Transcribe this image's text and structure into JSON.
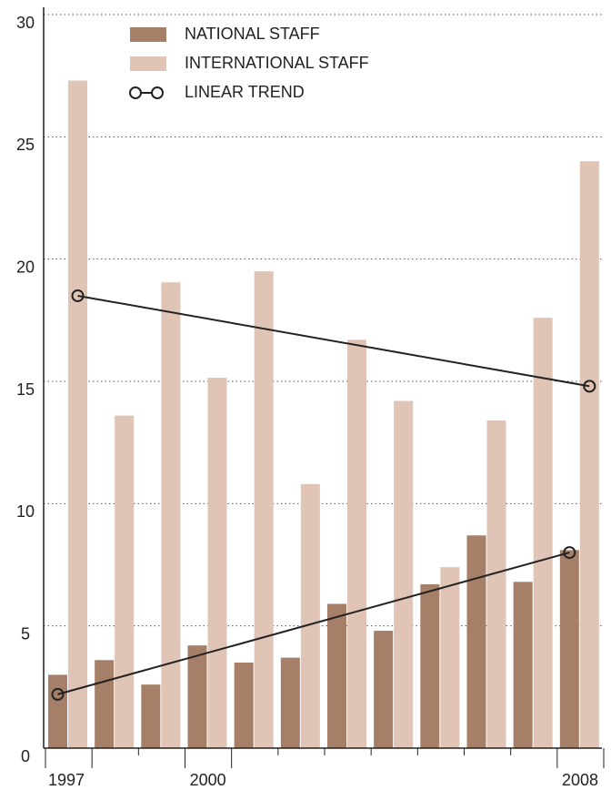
{
  "chart_data": {
    "type": "bar",
    "categories": [
      "1997",
      null,
      null,
      "2000",
      null,
      null,
      null,
      null,
      null,
      null,
      null,
      "2008"
    ],
    "series": [
      {
        "name": "NATIONAL STAFF",
        "color": "#a67f68",
        "values": [
          3.0,
          3.6,
          2.6,
          4.2,
          3.5,
          3.7,
          5.9,
          4.8,
          6.7,
          8.7,
          6.8,
          8.1
        ],
        "trend": [
          2.2,
          8.0
        ]
      },
      {
        "name": "INTERNATIONAL STAFF",
        "color": "#e0c4b5",
        "values": [
          27.3,
          13.6,
          19.05,
          15.15,
          19.5,
          10.8,
          16.7,
          14.2,
          7.4,
          13.4,
          17.6,
          24.0
        ],
        "trend": [
          18.5,
          14.8
        ]
      }
    ],
    "trend_label": "LINEAR TREND",
    "trend_color": "#222222",
    "ylim": [
      0,
      30
    ],
    "yticks": [
      0,
      5,
      10,
      15,
      20,
      25,
      30
    ],
    "grid": true,
    "legend": "top-left"
  }
}
